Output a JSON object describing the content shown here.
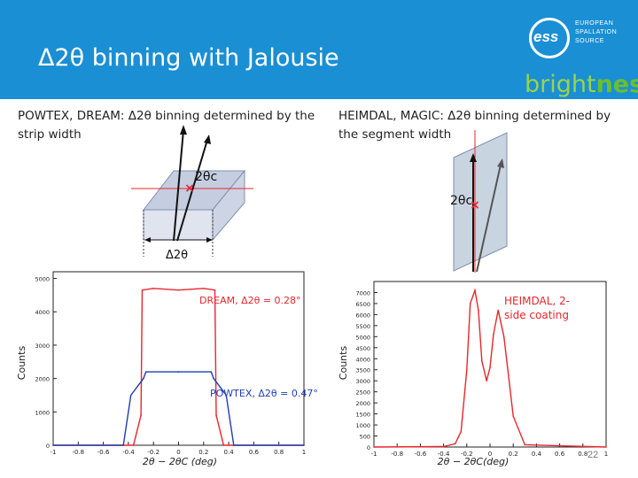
{
  "slide": {
    "title": "Δ2θ binning with Jalousie",
    "page_number": "22"
  },
  "logo": {
    "ess": "ess",
    "line1": "EUROPEAN",
    "line2": "SPALLATION",
    "line3": "SOURCE",
    "bright_a": "bright",
    "bright_b": "ness"
  },
  "left": {
    "text": "POWTEX, DREAM: Δ2θ binning determined by the strip width",
    "angle_label": "2θc",
    "delta_label": "Δ2θ"
  },
  "right": {
    "text": "HEIMDAL, MAGIC: Δ2θ binning determined by the segment width",
    "angle_label": "2θc"
  },
  "colors": {
    "header": "#1a8fd4",
    "red": "#e8262d",
    "blue": "#1f3eb5"
  },
  "chart_data": [
    {
      "type": "line",
      "ylabel": "Counts",
      "xlabel": "2θ − 2θC (deg)",
      "xlim": [
        -1,
        1
      ],
      "ylim": [
        0,
        5200
      ],
      "x_ticks": [
        "-1",
        "-0.8",
        "-0.6",
        "-0.4",
        "-0.2",
        "0",
        "0.2",
        "0.4",
        "0.6",
        "0.8",
        "1"
      ],
      "y_ticks": [
        "0",
        "1000",
        "2000",
        "3000",
        "4000",
        "5000"
      ],
      "annotations": [
        "DREAM, Δ2θ = 0.28°",
        "POWTEX, Δ2θ = 0.47°"
      ],
      "series": [
        {
          "name": "DREAM",
          "color": "#e8262d",
          "x": [
            -1,
            -0.36,
            -0.3,
            -0.29,
            -0.2,
            0,
            0.2,
            0.29,
            0.3,
            0.36,
            1
          ],
          "y": [
            0,
            0,
            900,
            4650,
            4700,
            4650,
            4700,
            4650,
            900,
            0,
            0
          ]
        },
        {
          "name": "POWTEX",
          "color": "#1f3eb5",
          "x": [
            -1,
            -0.44,
            -0.38,
            -0.28,
            -0.26,
            0,
            0.26,
            0.28,
            0.38,
            0.44,
            1
          ],
          "y": [
            0,
            0,
            1500,
            2000,
            2200,
            2200,
            2200,
            2000,
            1500,
            0,
            0
          ]
        }
      ]
    },
    {
      "type": "line",
      "ylabel": "Counts",
      "xlabel": "2θ − 2θC(deg)",
      "xlim": [
        -1,
        1
      ],
      "ylim": [
        0,
        7500
      ],
      "x_ticks": [
        "-1",
        "-0.8",
        "-0.6",
        "-0.4",
        "-0.2",
        "0",
        "0.2",
        "0.4",
        "0.6",
        "0.8",
        "1"
      ],
      "y_ticks": [
        "0",
        "500",
        "1000",
        "1500",
        "2000",
        "2500",
        "3000",
        "3500",
        "4000",
        "4500",
        "5000",
        "5500",
        "6000",
        "6500",
        "7000"
      ],
      "annotations": [
        "HEIMDAL, 2-side coating"
      ],
      "series": [
        {
          "name": "HEIMDAL",
          "color": "#e8262d",
          "x": [
            -1,
            -0.4,
            -0.3,
            -0.25,
            -0.2,
            -0.17,
            -0.13,
            -0.1,
            -0.07,
            -0.03,
            0,
            0.03,
            0.07,
            0.12,
            0.2,
            0.3,
            1
          ],
          "y": [
            0,
            20,
            150,
            700,
            3500,
            6500,
            7100,
            6200,
            3900,
            3000,
            3600,
            5100,
            6200,
            5000,
            1400,
            100,
            0
          ]
        }
      ]
    }
  ]
}
